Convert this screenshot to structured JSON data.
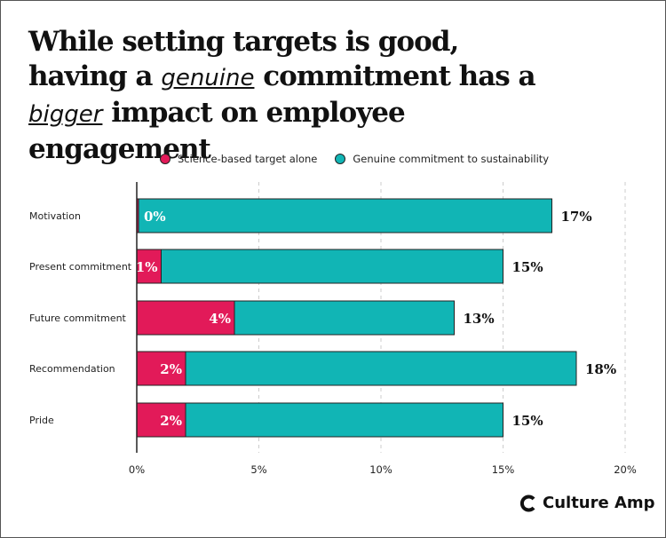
{
  "title": {
    "part1": "While setting targets is good, having a ",
    "hand1": "genuine",
    "part2": " commitment has a ",
    "hand2": "bigger",
    "part3": " impact on employee engagement"
  },
  "chart_data": {
    "type": "bar",
    "orientation": "horizontal",
    "stacked": true,
    "categories": [
      "Motivation",
      "Present commitment",
      "Future commitment",
      "Recommendation",
      "Pride"
    ],
    "series": [
      {
        "name": "Science-based target alone",
        "values": [
          0,
          1,
          4,
          2,
          2
        ],
        "labels": [
          "0%",
          "1%",
          "4%",
          "2%",
          "2%"
        ],
        "color": "#e21a59"
      },
      {
        "name": "Genuine commitment to sustainability",
        "values": [
          17,
          15,
          13,
          18,
          15
        ],
        "labels": [
          "17%",
          "15%",
          "13%",
          "18%",
          "15%"
        ],
        "color": "#11b5b5"
      }
    ],
    "xticks": [
      "0%",
      "5%",
      "10%",
      "15%",
      "20%"
    ],
    "xlim": [
      0,
      20
    ],
    "grid": "vertical dashed",
    "legend": "top"
  },
  "logo": {
    "text": "Culture Amp"
  }
}
